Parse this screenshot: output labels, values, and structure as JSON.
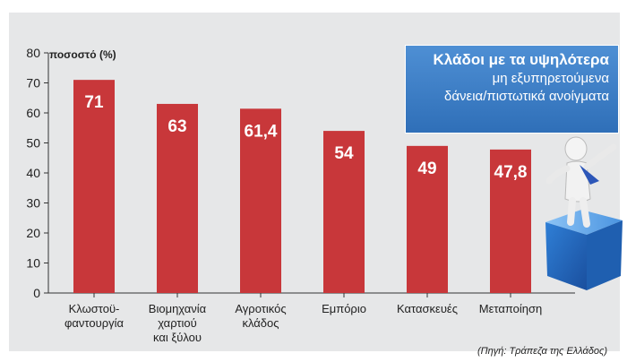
{
  "chart_data": {
    "type": "bar",
    "title": "Κλάδοι με τα υψηλότερα",
    "subtitle_lines": [
      "μη εξυπηρετούμενα",
      "δάνεια/πιστωτικά ανοίγματα"
    ],
    "ylabel": "ποσοστό (%)",
    "xlabel": "",
    "ylim": [
      0,
      80
    ],
    "yticks": [
      0,
      10,
      20,
      30,
      40,
      50,
      60,
      70,
      80
    ],
    "categories": [
      [
        "Κλωστοϋ-",
        "φαντουργία"
      ],
      [
        "Βιομηχανία",
        "χαρτιού",
        "και ξύλου"
      ],
      [
        "Αγροτικός",
        "κλάδος"
      ],
      [
        "Εμπόριο"
      ],
      [
        "Κατασκευές"
      ],
      [
        "Μεταποίηση"
      ]
    ],
    "values": [
      71,
      63,
      61.4,
      54,
      49,
      47.8
    ],
    "value_labels": [
      "71",
      "63",
      "61,4",
      "54",
      "49",
      "47,8"
    ],
    "bar_color": "#c8373a",
    "grid": false,
    "source": "(Πηγή: Τράπεζα της Ελλάδος)"
  },
  "colors": {
    "background": "#e6e7e8",
    "title_box": "#3a7ac4",
    "bar": "#c8373a",
    "axis": "#333333"
  },
  "illustration": {
    "icon": "person-on-blue-cube-icon"
  }
}
